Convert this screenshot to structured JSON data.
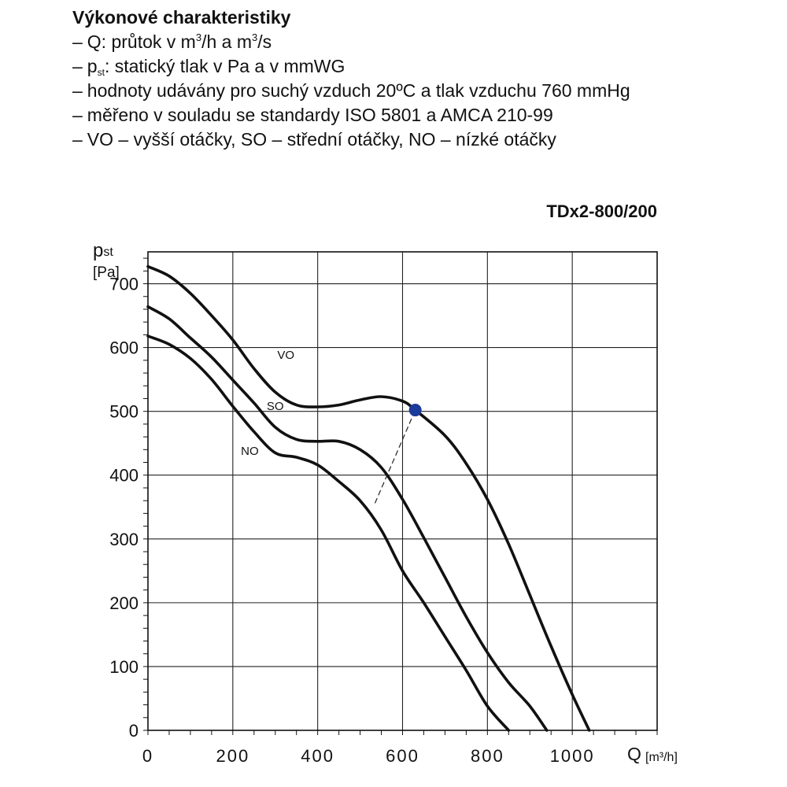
{
  "header": {
    "title": "Výkonové charakteristiky",
    "lines": [
      [
        {
          "t": "Q: průtok v m"
        },
        {
          "t": "3",
          "s": "sup"
        },
        {
          "t": "/h a m"
        },
        {
          "t": "3",
          "s": "sup"
        },
        {
          "t": "/s"
        }
      ],
      [
        {
          "t": "p"
        },
        {
          "t": "st",
          "s": "sub"
        },
        {
          "t": ": statický tlak v Pa a v mmWG"
        }
      ],
      [
        {
          "t": "hodnoty udávány pro suchý vzduch 20ºC a tlak vzduchu 760 mmHg"
        }
      ],
      [
        {
          "t": "měřeno v souladu se standardy ISO 5801 a AMCA 210-99"
        }
      ],
      [
        {
          "t": "VO – vyšší otáčky, SO – střední otáčky, NO – nízké otáčky"
        }
      ]
    ],
    "dash": "–"
  },
  "chart_data": {
    "type": "line",
    "title": "TDx2-800/200",
    "ylabel": "pst",
    "yunit": "[Pa]",
    "xlabel": "Q",
    "xunit": "[m³/h]",
    "xlim": [
      0,
      1200
    ],
    "ylim": [
      0,
      750
    ],
    "xticks": [
      0,
      200,
      400,
      600,
      800,
      1000
    ],
    "yticks": [
      0,
      100,
      200,
      300,
      400,
      500,
      600,
      700
    ],
    "grid": true,
    "series": [
      {
        "name": "VO",
        "points": [
          [
            0,
            727
          ],
          [
            50,
            712
          ],
          [
            100,
            685
          ],
          [
            150,
            650
          ],
          [
            200,
            612
          ],
          [
            250,
            567
          ],
          [
            300,
            530
          ],
          [
            350,
            510
          ],
          [
            400,
            507
          ],
          [
            450,
            510
          ],
          [
            500,
            518
          ],
          [
            550,
            523
          ],
          [
            600,
            516
          ],
          [
            630,
            502
          ],
          [
            700,
            462
          ],
          [
            750,
            418
          ],
          [
            800,
            362
          ],
          [
            850,
            292
          ],
          [
            900,
            212
          ],
          [
            950,
            132
          ],
          [
            1000,
            56
          ],
          [
            1040,
            0
          ]
        ]
      },
      {
        "name": "SO",
        "points": [
          [
            0,
            664
          ],
          [
            50,
            645
          ],
          [
            100,
            615
          ],
          [
            150,
            585
          ],
          [
            200,
            549
          ],
          [
            250,
            513
          ],
          [
            300,
            475
          ],
          [
            350,
            456
          ],
          [
            400,
            453
          ],
          [
            450,
            453
          ],
          [
            500,
            440
          ],
          [
            550,
            412
          ],
          [
            600,
            362
          ],
          [
            650,
            302
          ],
          [
            700,
            240
          ],
          [
            750,
            178
          ],
          [
            800,
            122
          ],
          [
            850,
            75
          ],
          [
            900,
            38
          ],
          [
            940,
            0
          ]
        ]
      },
      {
        "name": "NO",
        "points": [
          [
            0,
            618
          ],
          [
            50,
            605
          ],
          [
            100,
            583
          ],
          [
            150,
            550
          ],
          [
            200,
            508
          ],
          [
            250,
            468
          ],
          [
            300,
            435
          ],
          [
            350,
            428
          ],
          [
            400,
            416
          ],
          [
            450,
            390
          ],
          [
            500,
            360
          ],
          [
            550,
            314
          ],
          [
            600,
            250
          ],
          [
            650,
            200
          ],
          [
            700,
            147
          ],
          [
            750,
            94
          ],
          [
            800,
            38
          ],
          [
            850,
            0
          ]
        ]
      }
    ],
    "series_label_pos": {
      "VO": [
        325,
        582
      ],
      "SO": [
        300,
        502
      ],
      "NO": [
        240,
        432
      ]
    },
    "marker": {
      "x": 630,
      "y": 502,
      "color": "#1b3a9a"
    },
    "dashed_line": [
      [
        535,
        356
      ],
      [
        630,
        502
      ]
    ]
  }
}
